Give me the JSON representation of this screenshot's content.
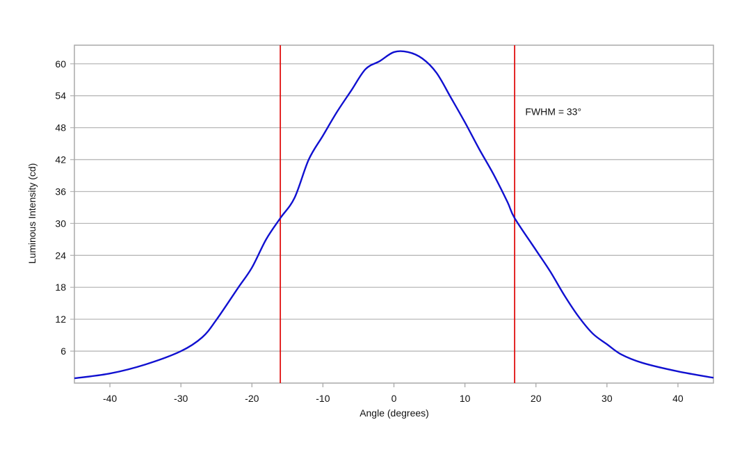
{
  "chart_data": {
    "type": "line",
    "title": "",
    "xlabel": "Angle (degrees)",
    "ylabel": "Luminous Intensity (cd)",
    "xlim": [
      -45,
      45
    ],
    "ylim": [
      0,
      63.5
    ],
    "xticks": [
      -40,
      -30,
      -20,
      -10,
      0,
      10,
      20,
      30,
      40
    ],
    "yticks": [
      6,
      12,
      18,
      24,
      30,
      36,
      42,
      48,
      54,
      60
    ],
    "grid": "horizontal",
    "series": [
      {
        "color": "#1010d0",
        "x": [
          -45,
          -40,
          -35,
          -30,
          -27,
          -25,
          -22,
          -20,
          -18,
          -16,
          -14,
          -12,
          -10,
          -8,
          -6,
          -4,
          -2,
          0,
          2,
          4,
          6,
          8,
          10,
          12,
          14,
          16,
          17,
          20,
          22,
          24,
          26,
          28,
          30,
          32,
          35,
          40,
          45
        ],
        "y": [
          0.9,
          1.8,
          3.5,
          6.0,
          8.6,
          11.9,
          17.8,
          21.7,
          27.0,
          31.0,
          34.8,
          42.0,
          46.5,
          51.0,
          55.0,
          59.0,
          60.5,
          62.2,
          62.2,
          61.0,
          58.3,
          53.7,
          49.0,
          44.0,
          39.3,
          34.0,
          31.0,
          25.0,
          21.0,
          16.5,
          12.5,
          9.3,
          7.3,
          5.4,
          3.8,
          2.2,
          1.0
        ]
      }
    ],
    "vlines": [
      {
        "x": -16,
        "color": "#e01010"
      },
      {
        "x": 17,
        "color": "#e01010"
      }
    ],
    "annotations": [
      {
        "text": "FWHM = 33°",
        "x": 18.5,
        "y": 51
      }
    ]
  }
}
